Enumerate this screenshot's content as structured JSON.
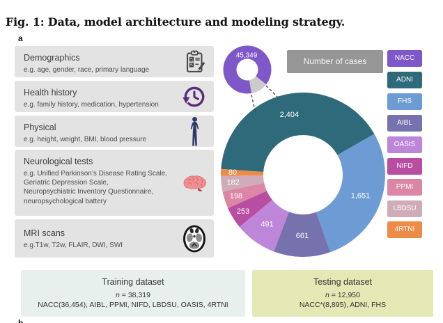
{
  "figure": {
    "title": "Fig. 1: Data, model architecture and modeling strategy.",
    "panel_a": "a",
    "panel_b": "b"
  },
  "modalities": [
    {
      "title": "Demographics",
      "description": "e.g. age, gender, race, primary language",
      "icon": "clipboard-checklist-icon"
    },
    {
      "title": "Health history",
      "description": "e.g. family history, medication, hypertension",
      "icon": "history-clock-icon"
    },
    {
      "title": "Physical",
      "description": "e.g. height, weight, BMI, blood pressure",
      "icon": "person-icon"
    },
    {
      "title": "Neurological tests",
      "description": "e.g. Unified Parkinson’s Disease Rating Scale,\nGeriatric Depression Scale,\nNeuropsychiatric Inventory Questionnaire,\nneuropsychological battery",
      "icon": "brain-icon"
    },
    {
      "title": "MRI scans",
      "description": "e.g.T1w, T2w, FLAIR, DWI, SWI",
      "icon": "mri-scan-icon"
    }
  ],
  "chart_data": {
    "type": "pie",
    "title": "Number of cases",
    "legend_position": "right",
    "nacc": {
      "name": "NACC",
      "value": 45349,
      "display": "45,349",
      "color": "#7E57C8"
    },
    "others_wedge_color": "#CBCBCB",
    "start_angle_deg": 274,
    "segments": [
      {
        "name": "ADNI",
        "value": 2404,
        "display": "2,404",
        "color": "#2F6A7A"
      },
      {
        "name": "FHS",
        "value": 1651,
        "display": "1,651",
        "color": "#6D9CD4"
      },
      {
        "name": "AIBL",
        "value": 661,
        "display": "661",
        "color": "#7672AE"
      },
      {
        "name": "OASIS",
        "value": 491,
        "display": "491",
        "color": "#BE86D9"
      },
      {
        "name": "NIFD",
        "value": 253,
        "display": "253",
        "color": "#B84DA2"
      },
      {
        "name": "PPMI",
        "value": 198,
        "display": "198",
        "color": "#DC86A6"
      },
      {
        "name": "LBDSU",
        "value": 182,
        "display": "182",
        "color": "#CFACB8"
      },
      {
        "name": "4RTNI",
        "value": 80,
        "display": "80",
        "color": "#EE8B47"
      }
    ],
    "legend": [
      {
        "label": "NACC",
        "color": "#7E57C8"
      },
      {
        "label": "ADNI",
        "color": "#2F6A7A"
      },
      {
        "label": "FHS",
        "color": "#6D9CD4"
      },
      {
        "label": "AIBL",
        "color": "#7672AE"
      },
      {
        "label": "OASIS",
        "color": "#BE86D9"
      },
      {
        "label": "NIFD",
        "color": "#B84DA2"
      },
      {
        "label": "PPMI",
        "color": "#DC86A6"
      },
      {
        "label": "LBDSU",
        "color": "#CFACB8"
      },
      {
        "label": "4RTNI",
        "color": "#EE8B47"
      }
    ]
  },
  "datasets": {
    "training": {
      "title": "Training dataset",
      "n_italic": "n",
      "n_rest": " = 38,319",
      "sources": "NACC(36,454), AIBL, PPMI, NIFD, LBDSU, OASIS, 4RTNI"
    },
    "testing": {
      "title": "Testing dataset",
      "n_italic": "n",
      "n_rest": " = 12,950",
      "sources": "NACC*(8,895), ADNI, FHS"
    }
  }
}
